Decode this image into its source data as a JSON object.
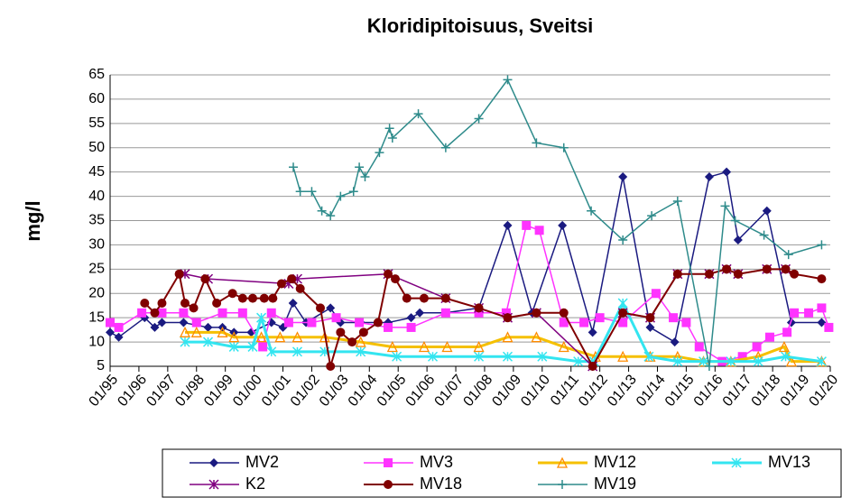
{
  "chart_data": {
    "type": "line",
    "title": "Kloridipitoisuus, Sveitsi",
    "y_label": "mg/l",
    "xlim": [
      1995,
      2020
    ],
    "xticks": [
      {
        "value": 1995,
        "label": "01/95"
      },
      {
        "value": 1996,
        "label": "01/96"
      },
      {
        "value": 1997,
        "label": "01/97"
      },
      {
        "value": 1998,
        "label": "01/98"
      },
      {
        "value": 1999,
        "label": "01/99"
      },
      {
        "value": 2000,
        "label": "01/00"
      },
      {
        "value": 2001,
        "label": "01/01"
      },
      {
        "value": 2002,
        "label": "01/02"
      },
      {
        "value": 2003,
        "label": "01/03"
      },
      {
        "value": 2004,
        "label": "01/04"
      },
      {
        "value": 2005,
        "label": "01/05"
      },
      {
        "value": 2006,
        "label": "01/06"
      },
      {
        "value": 2007,
        "label": "01/07"
      },
      {
        "value": 2008,
        "label": "01/08"
      },
      {
        "value": 2009,
        "label": "01/09"
      },
      {
        "value": 2010,
        "label": "01/10"
      },
      {
        "value": 2011,
        "label": "01/11"
      },
      {
        "value": 2012,
        "label": "01/12"
      },
      {
        "value": 2013,
        "label": "01/13"
      },
      {
        "value": 2014,
        "label": "01/14"
      },
      {
        "value": 2015,
        "label": "01/15"
      },
      {
        "value": 2016,
        "label": "01/16"
      },
      {
        "value": 2017,
        "label": "01/17"
      },
      {
        "value": 2018,
        "label": "01/18"
      },
      {
        "value": 2019,
        "label": "01/19"
      },
      {
        "value": 2020,
        "label": "01/20"
      }
    ],
    "ylim": [
      5,
      65
    ],
    "yticks": [
      5,
      10,
      15,
      20,
      25,
      30,
      35,
      40,
      45,
      50,
      55,
      60,
      65
    ],
    "grid": true,
    "series": [
      {
        "name": "MV2",
        "color": "#1a1a80",
        "marker": "diamond",
        "line_width": 1.5,
        "x": [
          1995,
          1995.3,
          1996.2,
          1996.55,
          1996.8,
          1997.55,
          1998.4,
          1998.9,
          1999.3,
          1999.9,
          2000.6,
          2001,
          2001.35,
          2001.8,
          2002.65,
          2003,
          2003.7,
          2004.65,
          2005.45,
          2005.75,
          2006.65,
          2007.8,
          2008.8,
          2009.65,
          2010.7,
          2011.75,
          2012.8,
          2013.75,
          2014.6,
          2015.8,
          2016.4,
          2016.8,
          2017.8,
          2018.65,
          2019.7
        ],
        "values": [
          12,
          11,
          15,
          13,
          14,
          14,
          13,
          13,
          12,
          12,
          14,
          13,
          18,
          14,
          17,
          14,
          14,
          14,
          15,
          16,
          16,
          17,
          34,
          16,
          34,
          12,
          44,
          13,
          10,
          44,
          45,
          31,
          37,
          14,
          14
        ]
      },
      {
        "name": "MV3",
        "color": "#ff33ff",
        "marker": "square",
        "line_width": 1.5,
        "x": [
          1995,
          1995.3,
          1996.1,
          1996.8,
          1997.55,
          1998,
          1998.9,
          1999.6,
          2000.3,
          2000.6,
          2001.2,
          2002,
          2002.85,
          2003.65,
          2004.65,
          2005.45,
          2006.65,
          2007.8,
          2008.75,
          2009.45,
          2009.9,
          2010.75,
          2011.45,
          2012,
          2012.8,
          2013.95,
          2014.55,
          2015,
          2015.45,
          2016.25,
          2016.95,
          2017.45,
          2017.9,
          2018.5,
          2018.75,
          2019.25,
          2019.7,
          2019.95
        ],
        "values": [
          14,
          13,
          16,
          16,
          16,
          14,
          16,
          16,
          9,
          16,
          14,
          14,
          15,
          14,
          13,
          13,
          16,
          16,
          16,
          34,
          33,
          14,
          14,
          15,
          14,
          20,
          15,
          14,
          9,
          6,
          7,
          9,
          11,
          12,
          16,
          16,
          17,
          13
        ]
      },
      {
        "name": "MV12",
        "color": "#f5c000",
        "marker": "triangle",
        "line_width": 3,
        "x": [
          1997.6,
          1998,
          1998.9,
          1999.3,
          2000.25,
          2000.9,
          2001.5,
          2002.45,
          2003.7,
          2004.8,
          2005.9,
          2006.7,
          2007.8,
          2008.8,
          2009.8,
          2010.75,
          2011.85,
          2012.8,
          2013.75,
          2014.7,
          2015.6,
          2016.55,
          2017.5,
          2018.4,
          2018.65,
          2019.7
        ],
        "values": [
          12,
          12,
          12,
          11,
          11,
          11,
          11,
          11,
          10,
          9,
          9,
          9,
          9,
          11,
          11,
          9,
          7,
          7,
          7,
          7,
          6,
          6,
          7,
          9,
          6,
          6
        ]
      },
      {
        "name": "MV13",
        "color": "#33e5f0",
        "marker": "asterisk",
        "line_width": 3,
        "x": [
          1997.6,
          1998.4,
          1999.3,
          1999.95,
          2000.25,
          2000.6,
          2001.5,
          2002.45,
          2003.7,
          2004.95,
          2006.2,
          2007.8,
          2008.8,
          2010,
          2011.25,
          2011.8,
          2012.8,
          2013.7,
          2014.7,
          2015.6,
          2016.55,
          2017.5,
          2018.45,
          2019.7
        ],
        "values": [
          10,
          10,
          9,
          9,
          15,
          8,
          8,
          8,
          8,
          7,
          7,
          7,
          7,
          7,
          6,
          6,
          18,
          7,
          6,
          6,
          6,
          6,
          7,
          6
        ]
      },
      {
        "name": "K2",
        "color": "#800080",
        "marker": "asterisk",
        "line_width": 1.5,
        "x": [
          1997.6,
          1998.4,
          2001.2,
          2001.5,
          2004.65,
          2006.65,
          2007.8,
          2008.8,
          2009.8,
          2011.75,
          2012.8,
          2013.75,
          2014.7,
          2015.8,
          2016.4,
          2016.8,
          2017.8,
          2018.45
        ],
        "values": [
          24,
          23,
          22,
          23,
          24,
          19,
          17,
          15,
          16,
          5,
          16,
          15,
          24,
          24,
          25,
          24,
          25,
          25
        ]
      },
      {
        "name": "MV18",
        "color": "#800000",
        "marker": "circle",
        "line_width": 2,
        "x": [
          1996.2,
          1996.55,
          1996.8,
          1997.4,
          1997.6,
          1997.9,
          1998.3,
          1998.7,
          1999.25,
          1999.6,
          1999.95,
          2000.35,
          2000.65,
          2000.95,
          2001.3,
          2001.6,
          2002.3,
          2002.65,
          2003,
          2003.4,
          2003.8,
          2004.3,
          2004.65,
          2004.9,
          2005.3,
          2005.9,
          2006.65,
          2007.8,
          2008.8,
          2009.8,
          2010.75,
          2011.75,
          2012.8,
          2013.75,
          2014.7,
          2015.8,
          2016.4,
          2016.8,
          2017.8,
          2018.45,
          2018.75,
          2019.7
        ],
        "values": [
          18,
          16,
          18,
          24,
          18,
          17,
          23,
          18,
          20,
          19,
          19,
          19,
          19,
          22,
          23,
          21,
          17,
          5,
          12,
          10,
          12,
          14,
          24,
          23,
          19,
          19,
          19,
          17,
          15,
          16,
          16,
          5,
          16,
          15,
          24,
          24,
          25,
          24,
          25,
          25,
          24,
          23
        ]
      },
      {
        "name": "MV19",
        "color": "#2e8b8b",
        "marker": "plus",
        "line_width": 1.5,
        "x": [
          2001.36,
          2001.6,
          2002,
          2002.35,
          2002.65,
          2003,
          2003.45,
          2003.65,
          2003.85,
          2004.35,
          2004.7,
          2004.8,
          2005.7,
          2006.65,
          2007.8,
          2008.8,
          2009.8,
          2010.75,
          2011.7,
          2012.8,
          2013.8,
          2014.7,
          2015.8,
          2016.35,
          2016.7,
          2017.7,
          2018.55,
          2019.7
        ],
        "values": [
          46,
          41,
          41,
          37,
          36,
          40,
          41,
          46,
          44,
          49,
          54,
          52,
          57,
          50,
          56,
          64,
          51,
          50,
          37,
          31,
          36,
          39,
          5,
          38,
          35,
          32,
          28,
          30
        ]
      }
    ]
  }
}
